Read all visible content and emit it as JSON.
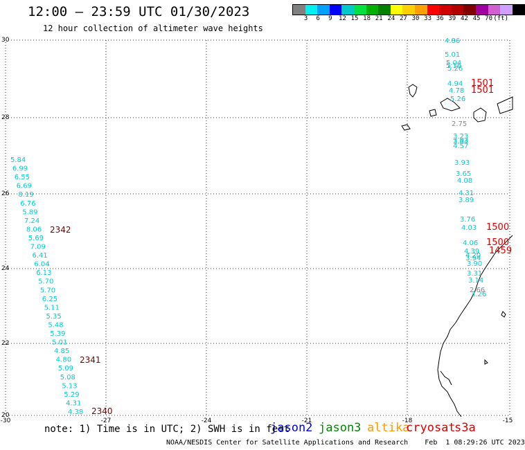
{
  "header": {
    "title": "12:00 – 23:59 UTC 01/30/2023",
    "subtitle": "12 hour collection of altimeter wave heights"
  },
  "colorbar": {
    "colors": [
      "#808080",
      "#00f0f0",
      "#00a0ff",
      "#0000ff",
      "#00c8c8",
      "#00e040",
      "#00b000",
      "#008000",
      "#ffff00",
      "#ffd000",
      "#ffa000",
      "#ff0000",
      "#d00000",
      "#b00000",
      "#800000",
      "#a000a0",
      "#d060d0",
      "#d0a0ff",
      "#000000"
    ],
    "labels": [
      "3",
      "6",
      "9",
      "12",
      "15",
      "18",
      "21",
      "24",
      "27",
      "30",
      "33",
      "36",
      "39",
      "42",
      "45",
      "70",
      "(ft)"
    ]
  },
  "axes": {
    "y_ticks": [
      "30",
      "28",
      "26",
      "24",
      "22",
      "20"
    ],
    "x_ticks": [
      "-30",
      "-27",
      "-24",
      "-21",
      "-18",
      "-15"
    ]
  },
  "west_track": {
    "values": [
      "5.84",
      "6.99",
      "6.55",
      "6.69",
      "8.19",
      "6.76",
      "5.89",
      "7.24",
      "8.06",
      "5.69",
      "7.09",
      "6.41",
      "6.04",
      "6.13",
      "5.70",
      "5.70",
      "6.25",
      "5.11",
      "5.35",
      "5.48",
      "5.39",
      "5.01",
      "4.85",
      "4.80",
      "5.09",
      "5.08",
      "5.13",
      "5.29",
      "4.31",
      "4.38"
    ],
    "pass_labels": [
      "2342",
      "2341",
      "2340"
    ]
  },
  "east_track": {
    "values": [
      "4.86",
      "5.01",
      "5.04",
      "5.16",
      "5.26",
      "4.94",
      "4.78",
      "5.26",
      "2.75",
      "3.23",
      "3.83",
      "3.84",
      "4.57",
      "3.93",
      "3.65",
      "4.08",
      "4.31",
      "3.89",
      "3.76",
      "4.03",
      "4.06",
      "4.39",
      "4.20",
      "3.94",
      "3.90",
      "3.31",
      "3.14",
      "2.66",
      "3.26"
    ],
    "pass_labels": [
      "1501",
      "1501",
      "1500",
      "1500",
      "1459"
    ]
  },
  "footer": {
    "note": "note: 1) Time is in UTC; 2) SWH is in feet",
    "missions": [
      {
        "name": "jason2",
        "color": "#0000dd"
      },
      {
        "name": "jason3",
        "color": "#008800"
      },
      {
        "name": "altika",
        "color": "#ff9900"
      },
      {
        "name": "cryosat",
        "color": "#dd0000"
      },
      {
        "name": "s3a",
        "color": "#dd0000"
      }
    ],
    "credit": "NOAA/NESDIS Center for Satellite Applications and Research    Feb  1 08:29:26 UTC 2023"
  }
}
